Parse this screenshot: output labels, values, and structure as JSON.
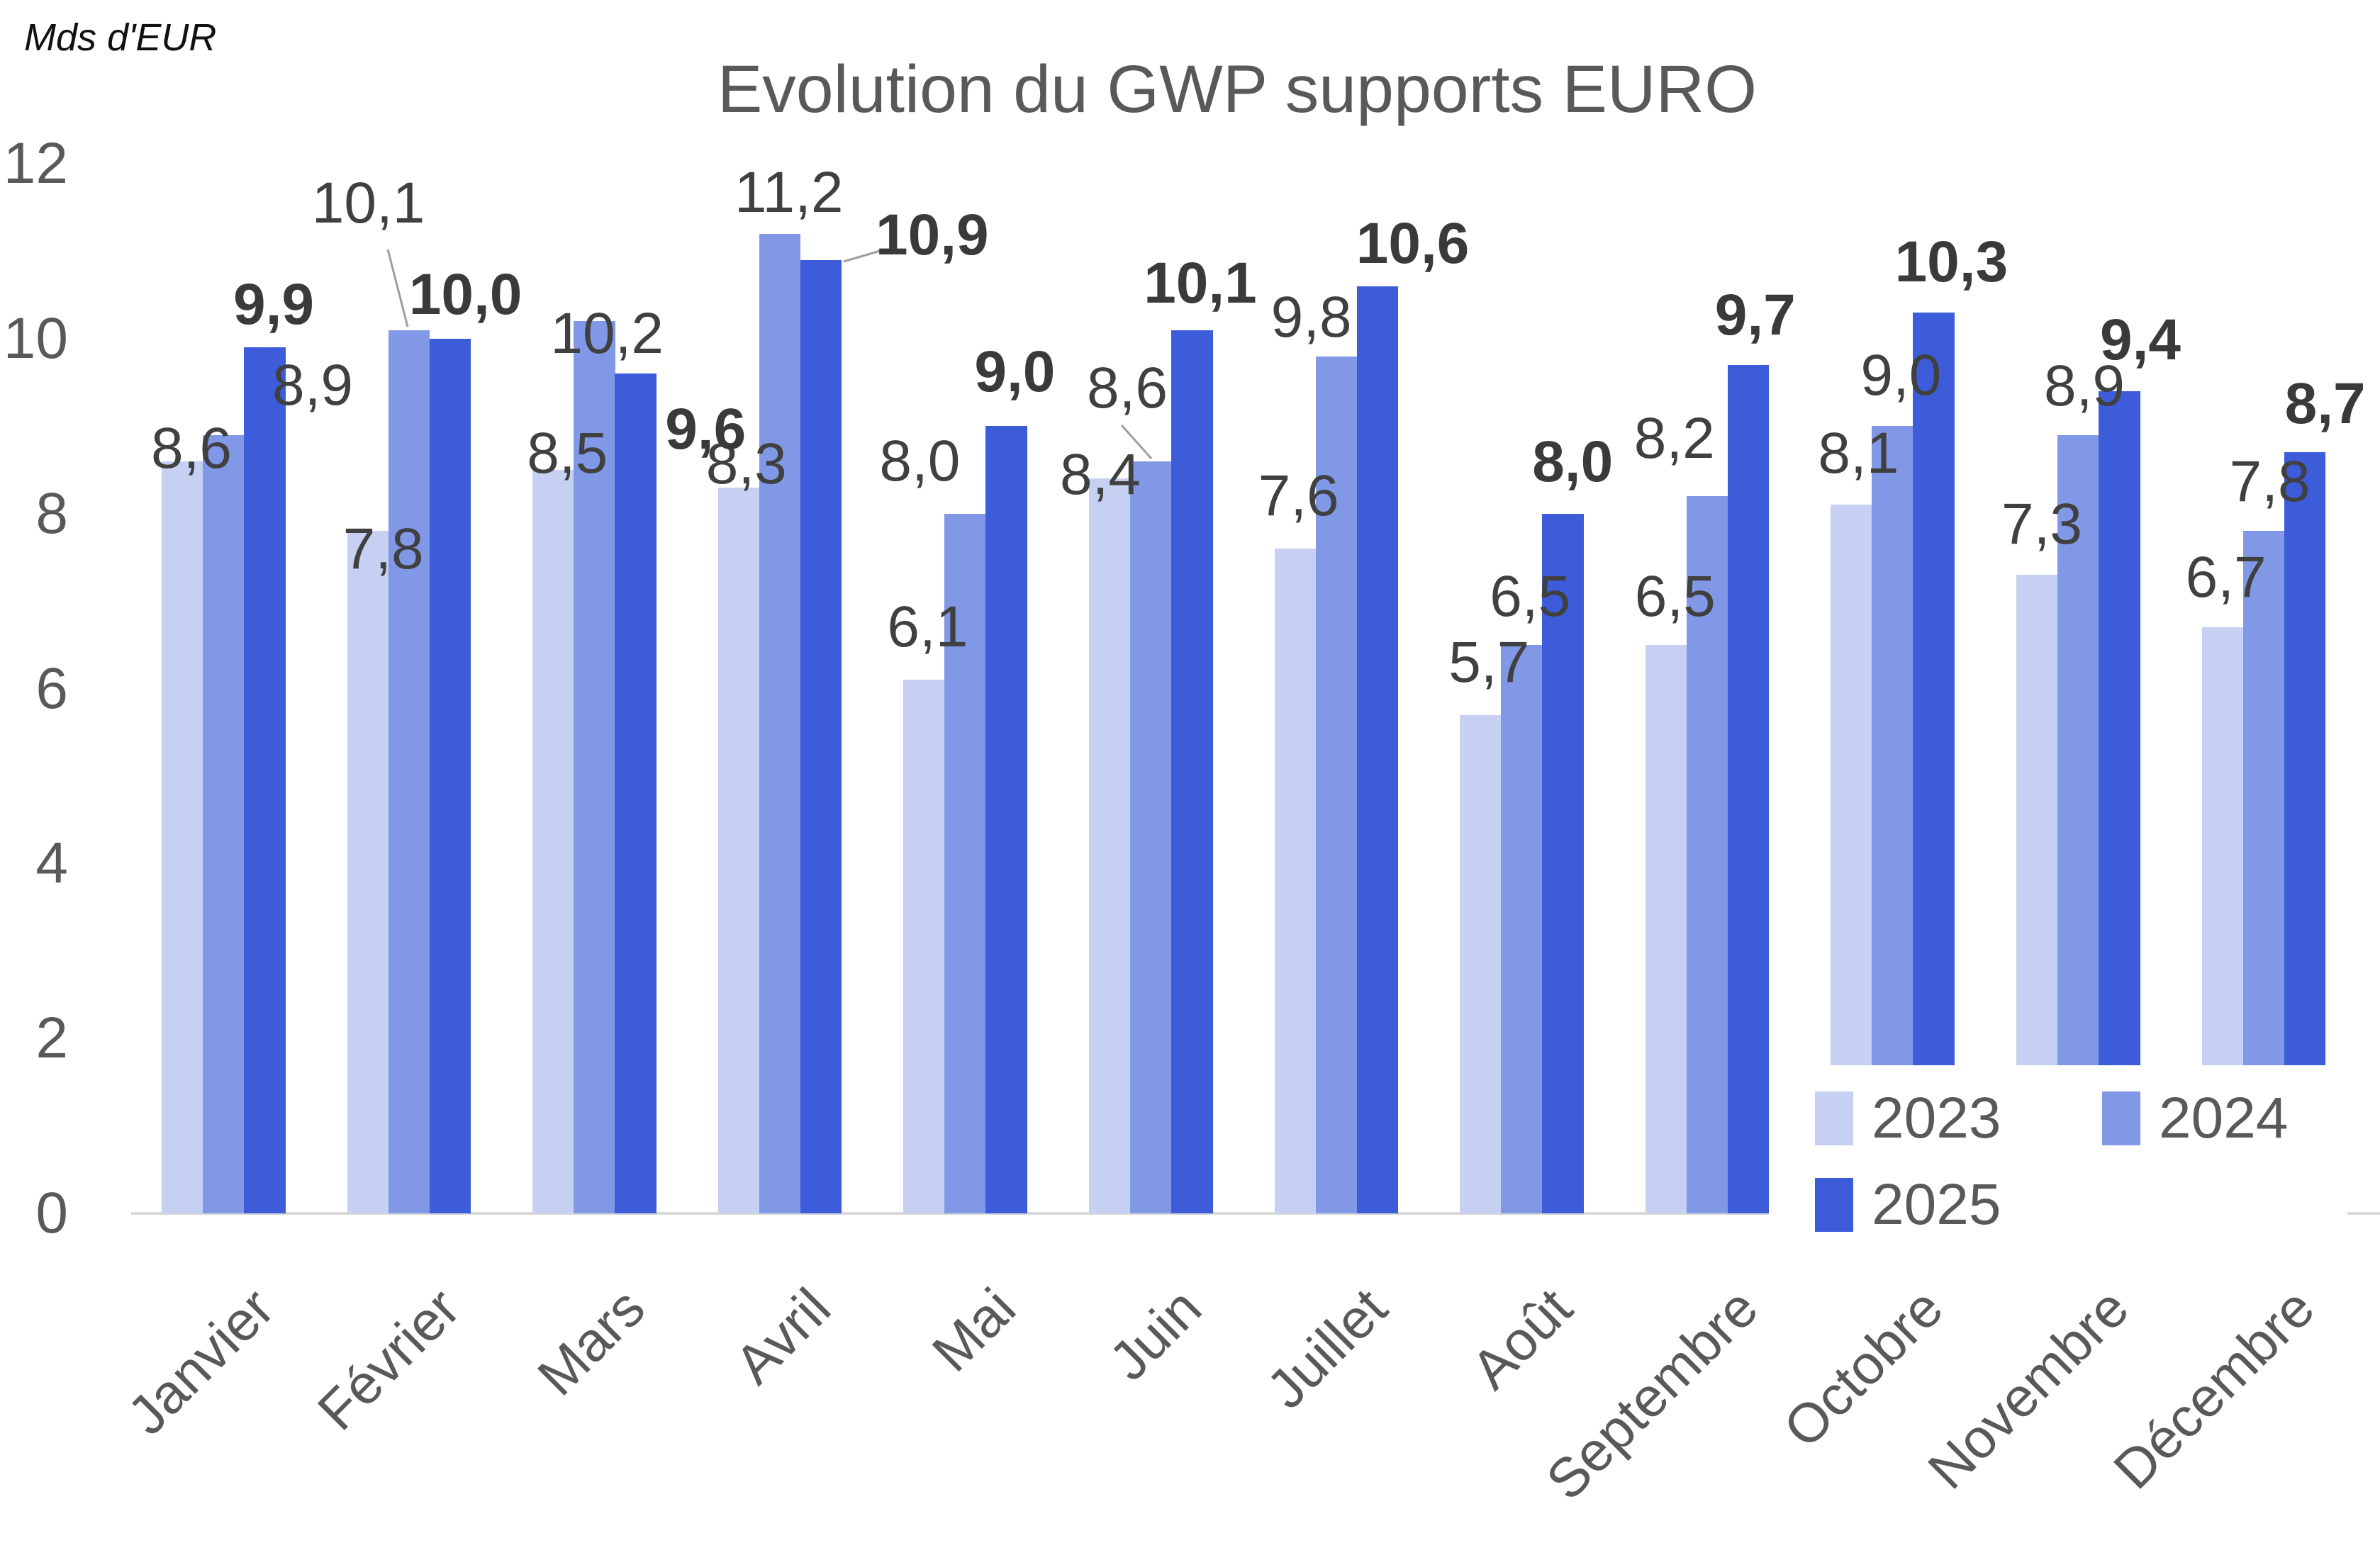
{
  "unit_label": "Mds d'EUR",
  "chart_data": {
    "type": "bar",
    "title": "Evolution du GWP supports EURO",
    "unit": "Mds d'EUR",
    "xlabel": "",
    "ylabel": "Mds d'EUR",
    "categories": [
      "Janvier",
      "Février",
      "Mars",
      "Avril",
      "Mai",
      "Juin",
      "Juillet",
      "Août",
      "Septembre",
      "Octobre",
      "Novembre",
      "Décembre"
    ],
    "series": [
      {
        "name": "2023",
        "color": "#c5d0f2",
        "values": [
          8.6,
          7.8,
          8.5,
          8.3,
          6.1,
          8.4,
          7.6,
          5.7,
          6.5,
          8.1,
          7.3,
          6.7
        ]
      },
      {
        "name": "2024",
        "color": "#8098e6",
        "values": [
          8.9,
          10.1,
          10.2,
          11.2,
          8.0,
          8.6,
          9.8,
          6.5,
          8.2,
          9.0,
          8.9,
          7.8
        ]
      },
      {
        "name": "2025",
        "color": "#3d5cd9",
        "values": [
          9.9,
          10.0,
          9.6,
          10.9,
          9.0,
          10.1,
          10.6,
          8.0,
          9.7,
          10.3,
          9.4,
          8.7
        ]
      }
    ],
    "bold_label_series": "2025",
    "label_decimal_separator": ",",
    "ylim": [
      0,
      12
    ],
    "y_ticks": [
      12,
      10,
      8,
      6,
      4,
      2,
      0
    ],
    "grid": false,
    "legend_position": "bottom-right-overlay",
    "colors": {
      "axis_line": "#d9d9d9",
      "leader_line": "#9e9e9e",
      "label_text": "#404040",
      "axis_text": "#595959",
      "title_text": "#595959"
    }
  }
}
